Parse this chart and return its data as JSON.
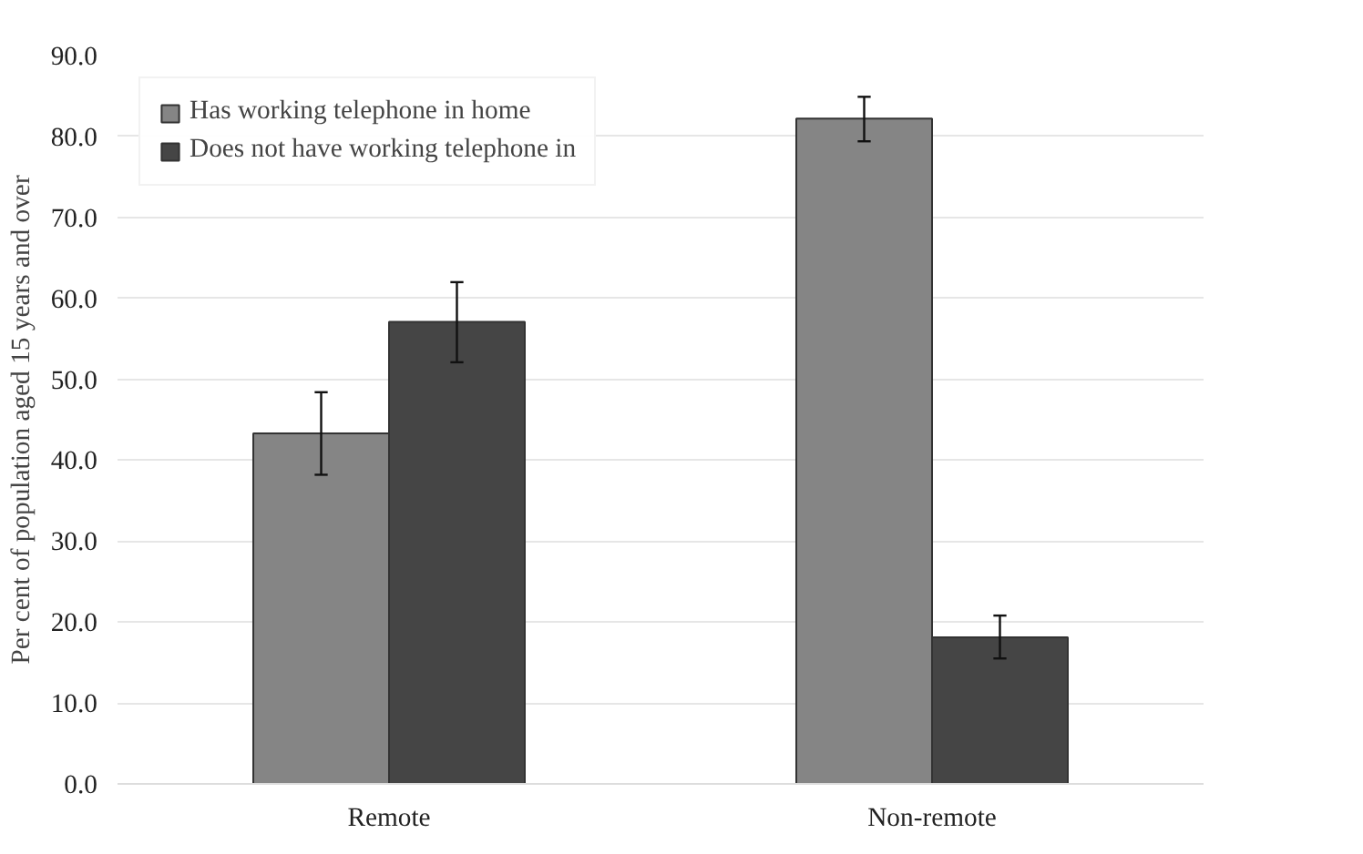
{
  "chart_data": {
    "type": "bar",
    "ylabel": "Per cent of population aged 15 years and over",
    "categories": [
      "Remote",
      "Non-remote"
    ],
    "series": [
      {
        "name": "Has working telephone in home",
        "color": "#858585",
        "values": [
          43.3,
          82.2
        ],
        "errors": [
          [
            38.2,
            48.4
          ],
          [
            79.4,
            84.9
          ]
        ]
      },
      {
        "name": "Does not have working telephone in",
        "color": "#454545",
        "values": [
          57.1,
          18.1
        ],
        "errors": [
          [
            52.1,
            62.0
          ],
          [
            15.5,
            20.8
          ]
        ]
      }
    ],
    "ylim": [
      0,
      90
    ],
    "yticks": [
      {
        "value": 0,
        "label": "0.0"
      },
      {
        "value": 10,
        "label": "10.0"
      },
      {
        "value": 20,
        "label": "20.0"
      },
      {
        "value": 30,
        "label": "30.0"
      },
      {
        "value": 40,
        "label": "40.0"
      },
      {
        "value": 50,
        "label": "50.0"
      },
      {
        "value": 60,
        "label": "60.0"
      },
      {
        "value": 70,
        "label": "70.0"
      },
      {
        "value": 80,
        "label": "80.0"
      },
      {
        "value": 90,
        "label": "90.0"
      }
    ],
    "grid": "y",
    "legend": "top left"
  }
}
